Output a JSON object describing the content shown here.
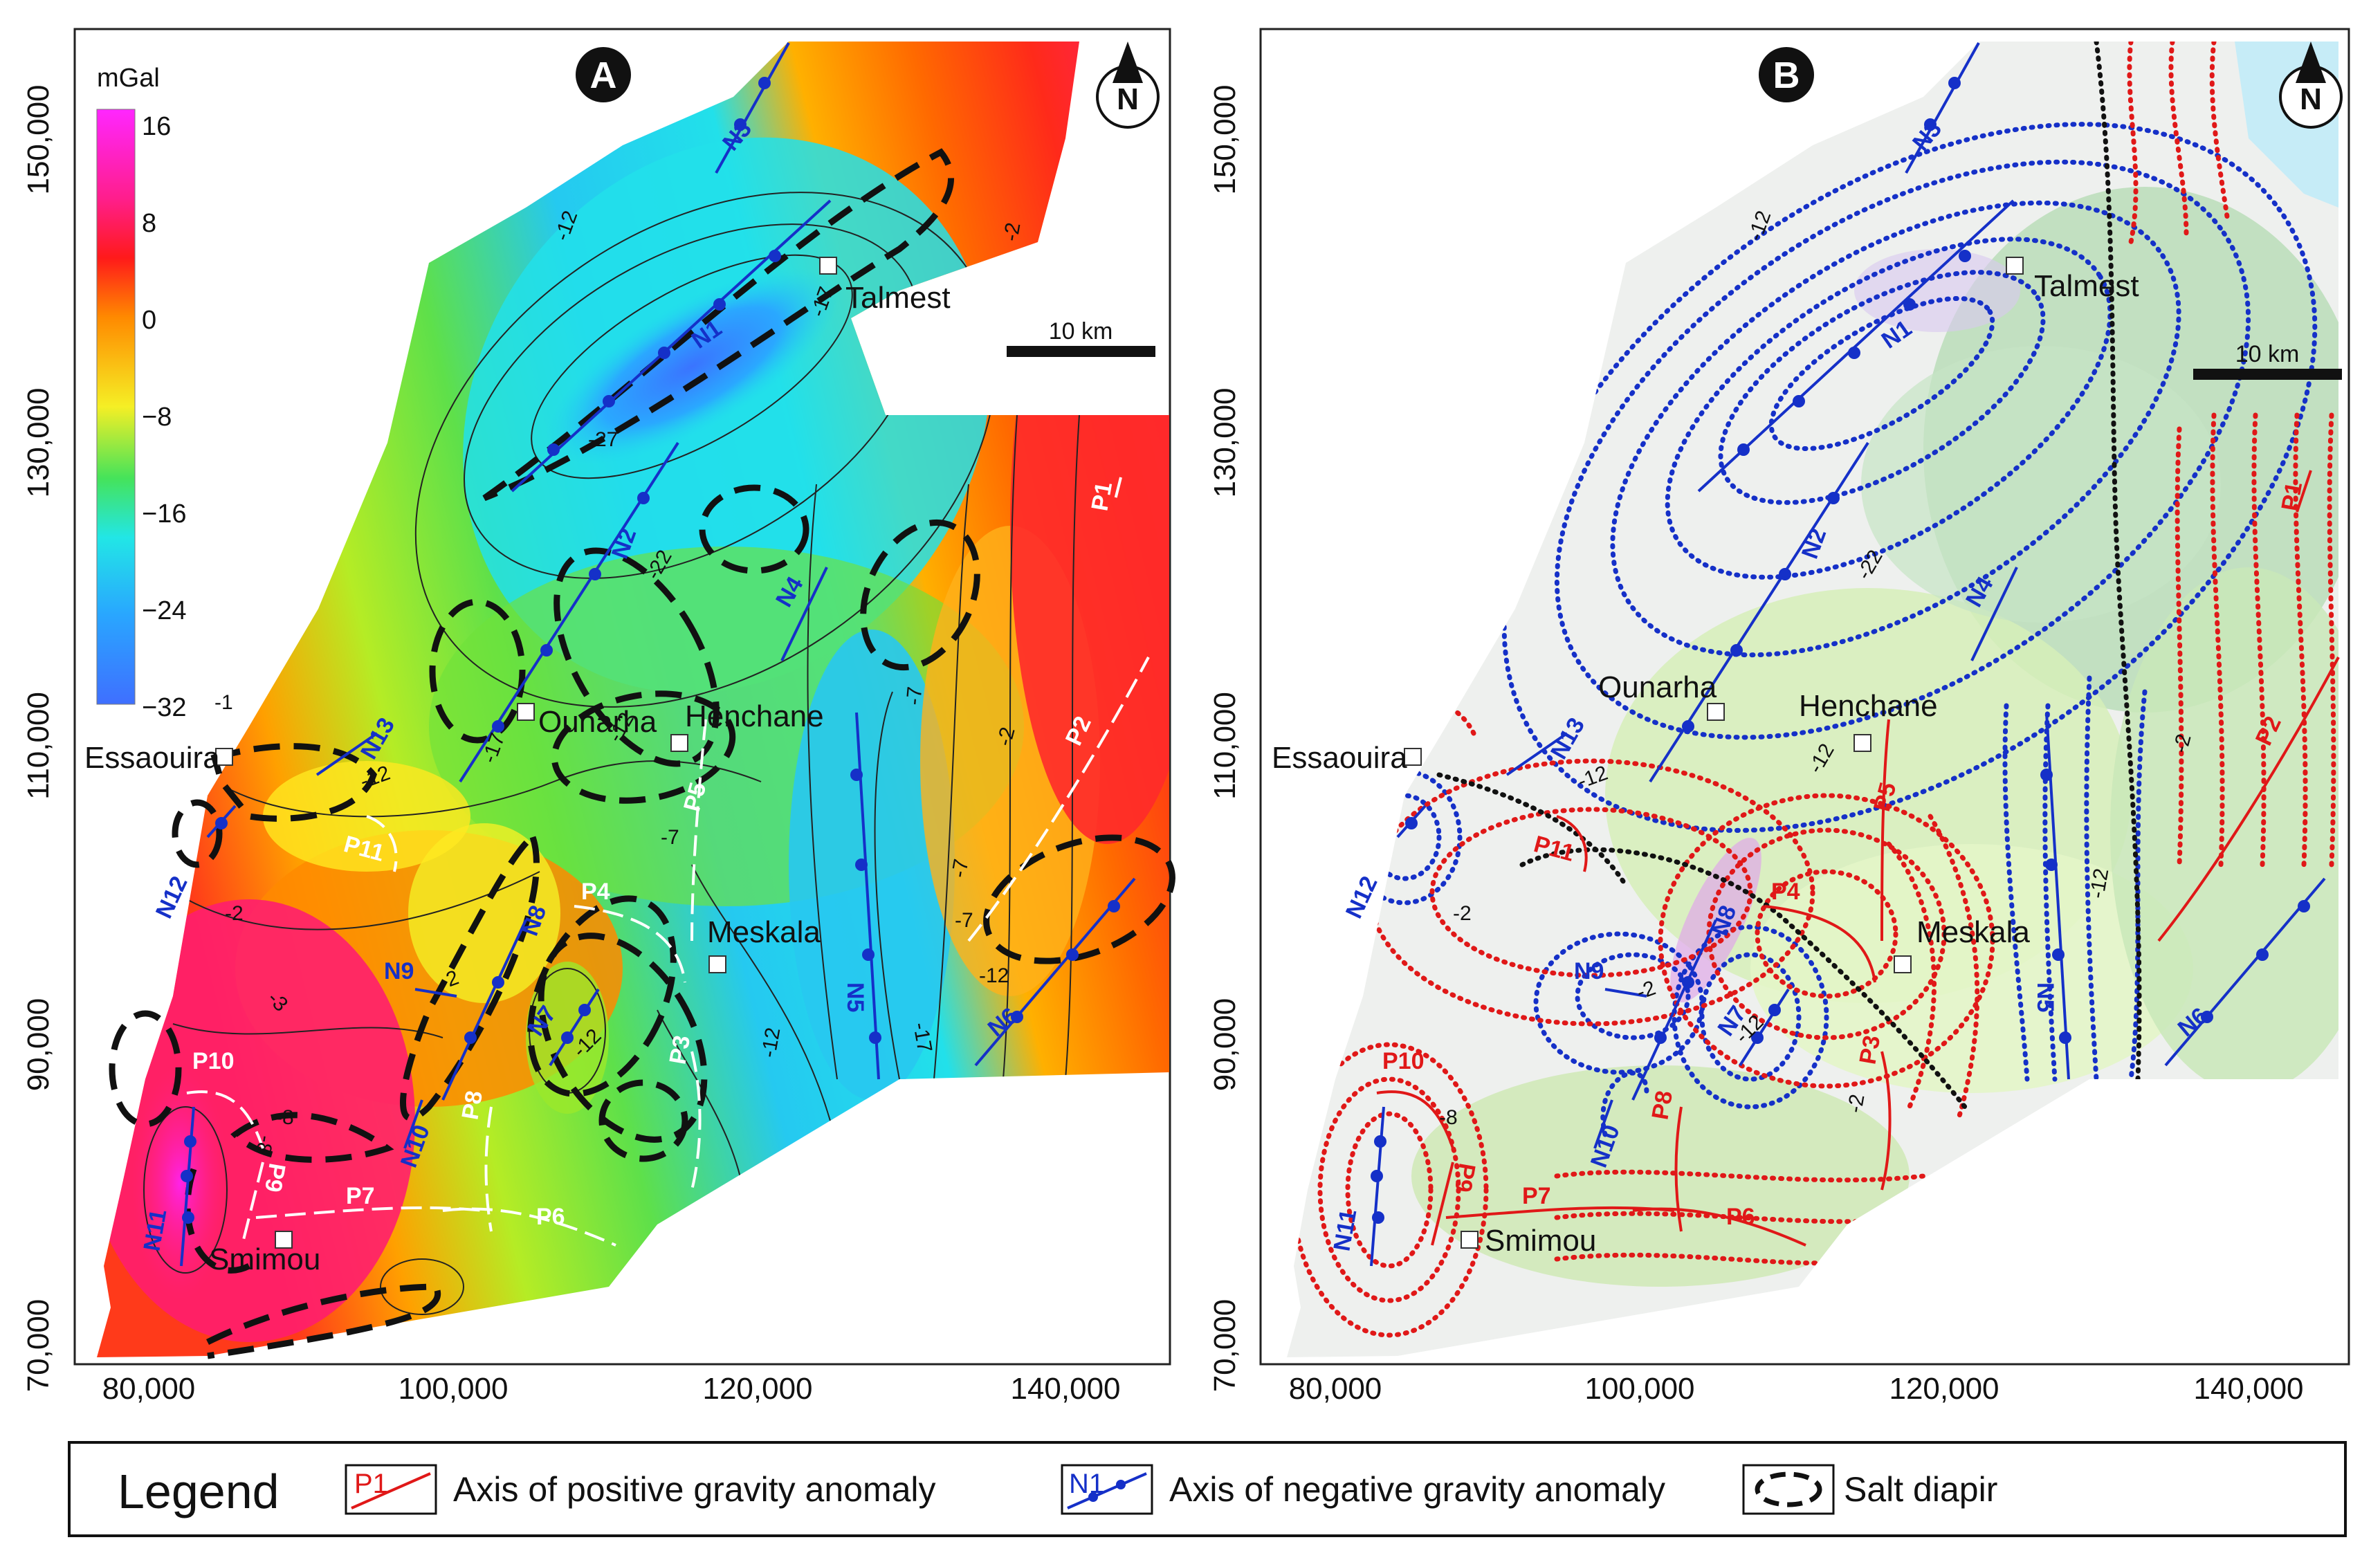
{
  "colorbar": {
    "unit": "mGal",
    "ticks": [
      "16",
      "8",
      "0",
      "−8",
      "−16",
      "−24",
      "−32"
    ],
    "colors": [
      "#ff26ff",
      "#ff1e8c",
      "#ff1a1a",
      "#ff8a00",
      "#f5ef25",
      "#45e35a",
      "#22e6e6",
      "#29a6ff",
      "#3f6fff"
    ]
  },
  "x_ticks": [
    "80,000",
    "100,000",
    "120,000",
    "140,000"
  ],
  "y_ticks": [
    "150,000",
    "130,000",
    "110,000",
    "90,000",
    "70,000"
  ],
  "scale_bar": "10 km",
  "north": "N",
  "places": {
    "essaouira": "Essaouira",
    "ounarha": "Ounarha",
    "henchane": "Henchane",
    "talmest": "Talmest",
    "meskala": "Meskala",
    "smimou": "Smimou"
  },
  "contour_values_a": [
    "-2",
    "-7",
    "-12",
    "-17",
    "-22",
    "-27",
    "-2",
    "-7",
    "-12",
    "-17",
    "-12",
    "-12",
    "-7",
    "-2",
    "-3",
    "-8",
    "-12",
    "-17",
    "-12",
    "-7",
    "-2",
    "-8",
    "-1"
  ],
  "contour_values_b": [
    "-12",
    "-22",
    "-12",
    "-12",
    "-12",
    "-2",
    "-2",
    "-2",
    "-12",
    "-8",
    "-2"
  ],
  "neg_axes": [
    "N1",
    "N2",
    "N3",
    "N4",
    "N5",
    "N6",
    "N7",
    "N8",
    "N9",
    "N10",
    "N11",
    "N12",
    "N13"
  ],
  "pos_axes": [
    "P1",
    "P2",
    "P3",
    "P4",
    "P5",
    "P6",
    "P7",
    "P8",
    "P9",
    "P10",
    "P11"
  ],
  "panels": {
    "a": "A",
    "b": "B"
  },
  "legend": {
    "title": "Legend",
    "pos_label": "Axis of positive gravity anomaly",
    "neg_label": "Axis of negative gravity anomaly",
    "salt_label": "Salt diapir",
    "pos_icon_text": "P1",
    "neg_icon_text": "N1",
    "pos_color": "#e01818",
    "neg_color": "#1530c8"
  }
}
